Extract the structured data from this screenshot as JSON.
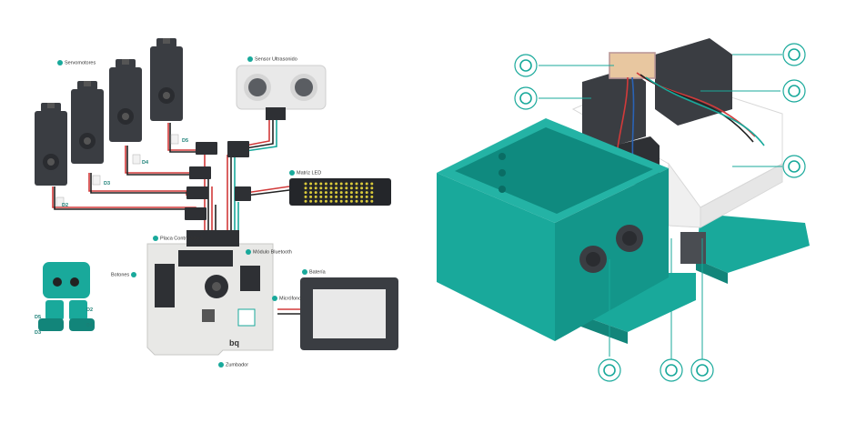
{
  "colors": {
    "teal": "#19a99b",
    "teal_dark": "#12857a",
    "servo": "#3a3d42",
    "board": "#e8e8e6",
    "wire_red": "#d23a3a",
    "wire_black": "#222222"
  },
  "schematic": {
    "servos_label": "Servomotores",
    "ultrasonic_label": "Sensor Ultrasonido",
    "led_matrix_label": "Matriz LED",
    "controller_label": "Placa Controladora",
    "bluetooth_label": "Módulo Bluetooth",
    "buttons_label": "Botones",
    "battery_label": "Batería",
    "microphone_label": "Micrófono",
    "buzzer_label": "Zumbador",
    "port_labels": [
      "D2",
      "D3",
      "D4",
      "D5"
    ],
    "mini_robot_ports": [
      "D5",
      "D2",
      "D3",
      "D4"
    ],
    "brand": "bq"
  },
  "exploded_view": {
    "callout_icons": [
      "cloud-icon",
      "gear-icon",
      "gear-icon",
      "battery-icon",
      "bulb-icon",
      "eye-icon",
      "gear-icon",
      "gear-icon"
    ]
  }
}
